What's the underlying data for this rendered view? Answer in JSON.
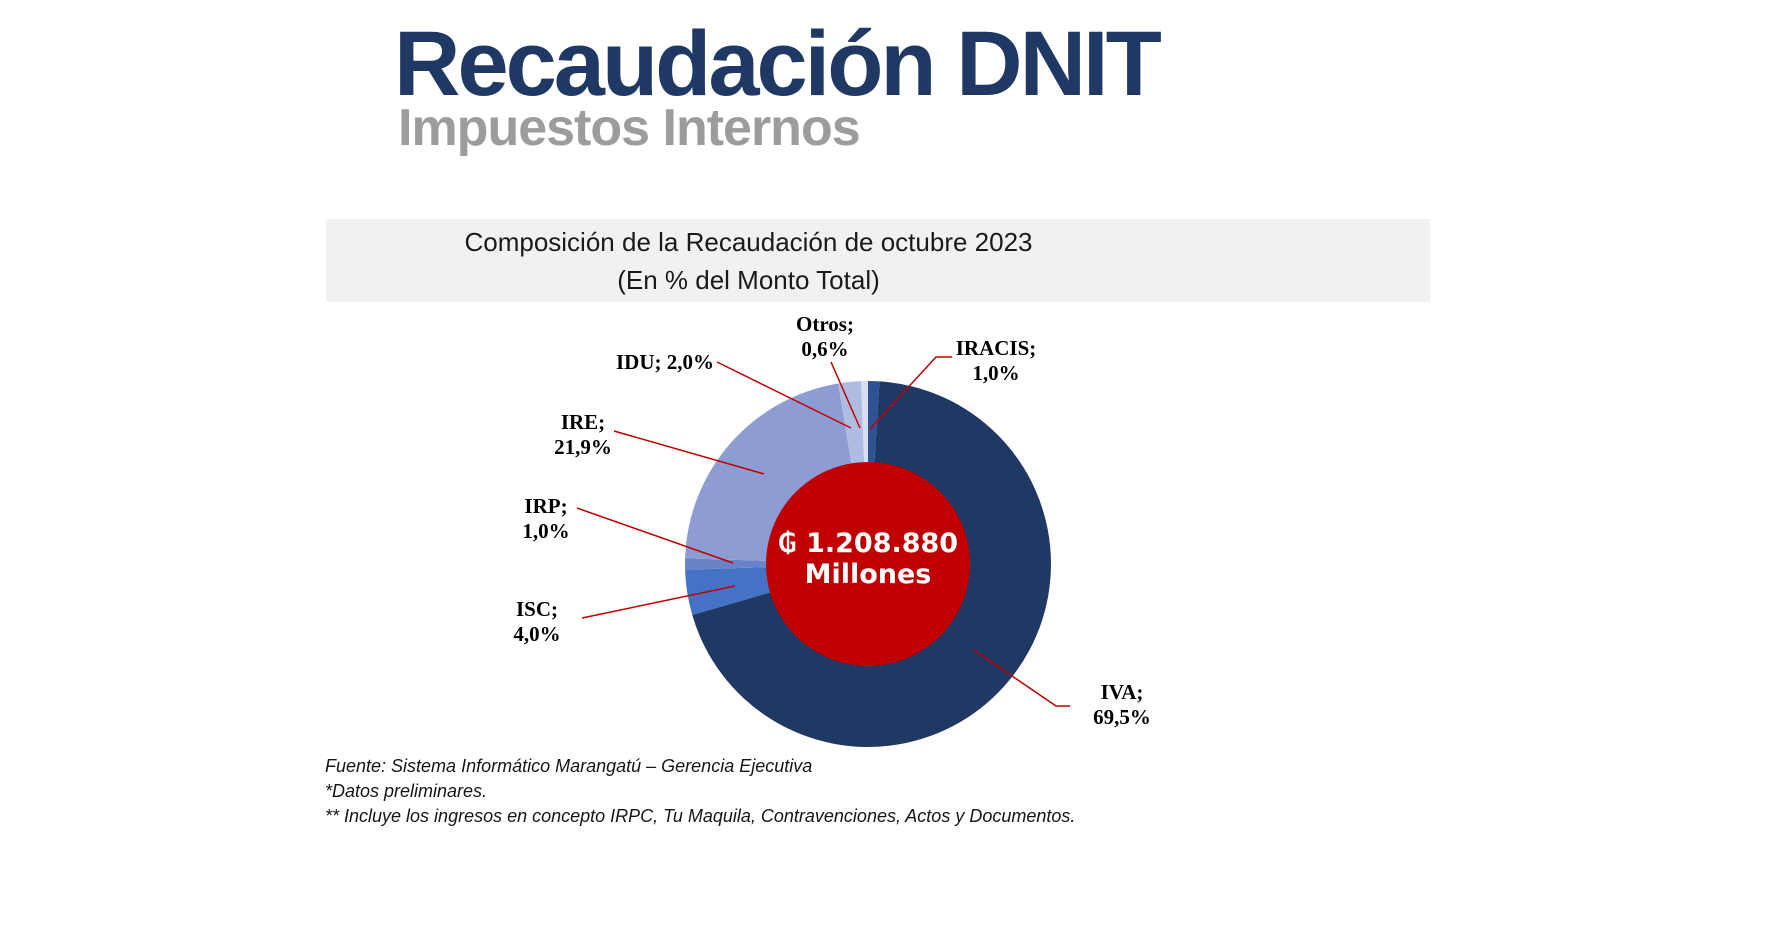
{
  "page": {
    "title": "Recaudación DNIT",
    "subtitle": "Impuestos Internos"
  },
  "chart_data": {
    "type": "pie",
    "subtype": "donut",
    "title_lines": [
      "Composición de la Recaudación de octubre 2023",
      "(En % del Monto Total)"
    ],
    "unit": "% del monto total",
    "direction": "clockwise",
    "start_angle": "12-oclock",
    "legend": "none (callout labels with leader lines)",
    "leader_line_color": "#C00000",
    "segments": [
      {
        "name": "IRACIS",
        "value": 1.0,
        "display": "1,0%",
        "color": "#2E5395",
        "label_lines": [
          "IRACIS;",
          "1,0%"
        ]
      },
      {
        "name": "IVA",
        "value": 69.5,
        "display": "69,5%",
        "color": "#1F3864",
        "label_lines": [
          "IVA;",
          "69,5%"
        ]
      },
      {
        "name": "ISC",
        "value": 4.0,
        "display": "4,0%",
        "color": "#4472C4",
        "label_lines": [
          "ISC;",
          "4,0%"
        ]
      },
      {
        "name": "IRP",
        "value": 1.0,
        "display": "1,0%",
        "color": "#6A83C8",
        "label_lines": [
          "IRP;",
          "1,0%"
        ]
      },
      {
        "name": "IRE",
        "value": 21.9,
        "display": "21,9%",
        "color": "#8D9DD3",
        "label_lines": [
          "IRE;",
          "21,9%"
        ]
      },
      {
        "name": "IDU",
        "value": 2.0,
        "display": "2,0%",
        "color": "#AFBCE2",
        "label_lines": [
          "IDU; 2,0%"
        ]
      },
      {
        "name": "Otros",
        "value": 0.6,
        "display": "0,6%",
        "color": "#D8DEF0",
        "label_lines": [
          "Otros;",
          "0,6%"
        ]
      }
    ],
    "center_label": {
      "line1": "₲ 1.208.880",
      "line2": "Millones",
      "background": "#C00000",
      "text_color": "#FFFFFF"
    }
  },
  "footnotes": [
    "Fuente: Sistema Informático Marangatú – Gerencia Ejecutiva",
    "*Datos preliminares.",
    "** Incluye los ingresos en concepto IRPC, Tu Maquila, Contravenciones, Actos y Documentos."
  ],
  "colors": {
    "title": "#1F3864",
    "subtitle": "#9C9C9C",
    "band_background": "#F1F1F1",
    "accent_red": "#C00000"
  }
}
